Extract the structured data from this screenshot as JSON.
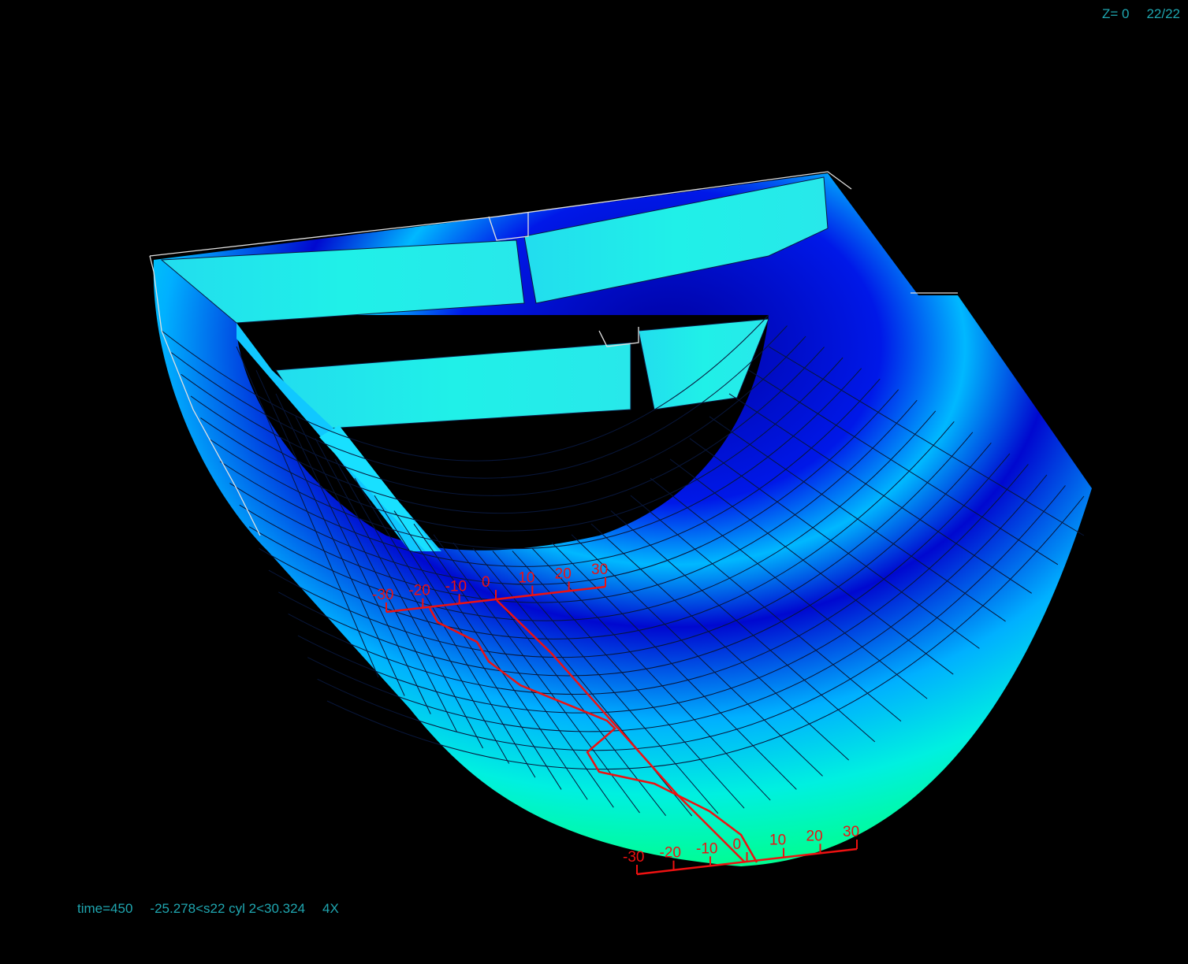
{
  "header": {
    "z_label": "Z= 0",
    "frame": "22/22"
  },
  "status": {
    "time": "time=450",
    "range": "-25.278<s22 cyl 2<30.324",
    "scale": "4X"
  },
  "upper_scale": {
    "ticks": [
      "-30",
      "-20",
      "-10",
      "0",
      "10",
      "20",
      "30"
    ]
  },
  "lower_scale": {
    "ticks": [
      "-30",
      "-20",
      "-10",
      "0",
      "10",
      "20",
      "30"
    ]
  },
  "colors": {
    "background": "#000000",
    "hud_text": "#1fa6b0",
    "plot_red": "#ee1111",
    "mesh_line": "#0a1a40",
    "outline": "#ffffff",
    "contour_low": "#0000ff",
    "contour_mid": "#00ffff",
    "contour_high": "#00ff66"
  }
}
